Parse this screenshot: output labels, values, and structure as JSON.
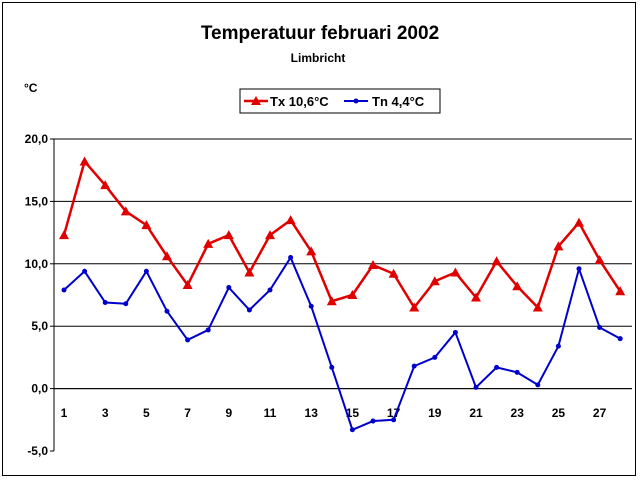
{
  "chart_data": {
    "type": "line",
    "title": "Temperatuur februari 2002",
    "subtitle": "Limbricht",
    "ylabel": "°C",
    "ylim": [
      -5,
      20
    ],
    "yticks": [
      20,
      15,
      10,
      5,
      0,
      -5
    ],
    "ytick_labels": [
      "20,0",
      "15,0",
      "10,0",
      "5,0",
      "0,0",
      "-5,0"
    ],
    "xlim": [
      1,
      28
    ],
    "xticks": [
      1,
      3,
      5,
      7,
      9,
      11,
      13,
      15,
      17,
      19,
      21,
      23,
      25,
      27
    ],
    "xtick_labels": [
      "1",
      "3",
      "5",
      "7",
      "9",
      "11",
      "13",
      "15",
      "17",
      "19",
      "21",
      "23",
      "25",
      "27"
    ],
    "grid": "horizontal",
    "legend_position": "top",
    "x": [
      1,
      2,
      3,
      4,
      5,
      6,
      7,
      8,
      9,
      10,
      11,
      12,
      13,
      14,
      15,
      16,
      17,
      18,
      19,
      20,
      21,
      22,
      23,
      24,
      25,
      26,
      27,
      28
    ],
    "series": [
      {
        "name": "Tx 10,6°C",
        "color": "#e00000",
        "marker": "triangle",
        "values": [
          12.3,
          18.2,
          16.3,
          14.2,
          13.1,
          10.6,
          8.3,
          11.6,
          12.3,
          9.3,
          12.3,
          13.5,
          11.0,
          7.0,
          7.5,
          9.9,
          9.2,
          6.5,
          8.6,
          9.3,
          7.3,
          10.2,
          8.2,
          6.5,
          11.4,
          13.3,
          10.3,
          7.8
        ]
      },
      {
        "name": "Tn 4,4°C",
        "color": "#0000cc",
        "marker": "circle",
        "values": [
          7.9,
          9.4,
          6.9,
          6.8,
          9.4,
          6.2,
          3.9,
          4.7,
          8.1,
          6.3,
          7.9,
          10.5,
          6.6,
          1.7,
          -3.3,
          -2.6,
          -2.5,
          1.8,
          2.5,
          4.5,
          0.1,
          1.7,
          1.3,
          0.3,
          3.4,
          9.6,
          4.9,
          4.0
        ]
      }
    ]
  }
}
